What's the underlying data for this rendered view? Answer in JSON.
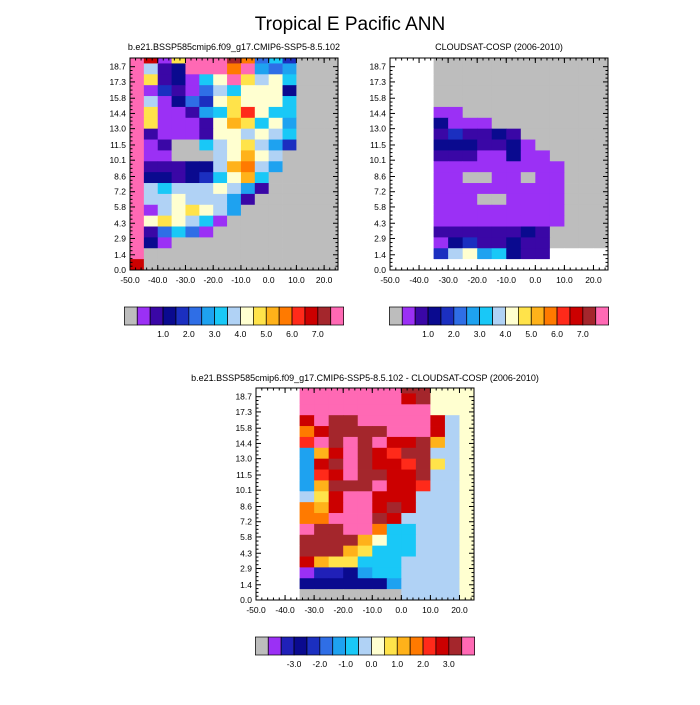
{
  "page_title": "Tropical E Pacific ANN",
  "colors": {
    "missing": "#bdbdbd",
    "default_scale": [
      "#bdbdbd",
      "#9b30f5",
      "#3a07a6",
      "#0a0a8f",
      "#1b2fc0",
      "#2f6ee6",
      "#1ea2f0",
      "#19c8f7",
      "#b0d2f5",
      "#ffffd0",
      "#ffe34a",
      "#ffb21a",
      "#ff7a00",
      "#ff2a1a",
      "#cc0000",
      "#a4262c",
      "#ff69b4"
    ],
    "diff_scale": [
      "#bdbdbd",
      "#9b30f5",
      "#2020b8",
      "#0a0a8f",
      "#1b2fc0",
      "#2f6ee6",
      "#1ea2f0",
      "#19c8f7",
      "#b0d2f5",
      "#ffffd0",
      "#ffe34a",
      "#ffb21a",
      "#ff7a00",
      "#ff2a1a",
      "#cc0000",
      "#a4262c",
      "#ff69b4"
    ]
  },
  "chart_data": [
    {
      "id": "model",
      "type": "heatmap",
      "title": "b.e21.BSSP585cmip6.f09_g17.CMIP6-SSP5-8.5.102",
      "xlim": [
        -50,
        25
      ],
      "ylim": [
        0,
        19.5
      ],
      "x_ticks": [
        -50,
        -40,
        -30,
        -20,
        -10,
        0,
        10,
        20
      ],
      "x_tick_labels": [
        "-50.0",
        "-40.0",
        "-30.0",
        "-20.0",
        "-10.0",
        "0.0",
        "10.0",
        "20.0"
      ],
      "y_ticks": [
        0.0,
        1.4,
        2.9,
        4.3,
        5.8,
        7.2,
        8.6,
        10.1,
        11.5,
        13.0,
        14.4,
        15.8,
        17.3,
        18.7
      ],
      "y_tick_labels": [
        "0.0",
        "1.4",
        "2.9",
        "4.3",
        "5.8",
        "7.2",
        "8.6",
        "10.1",
        "11.5",
        "13.0",
        "14.4",
        "15.8",
        "17.3",
        "18.7"
      ],
      "x_cells": [
        -50,
        -45,
        -40,
        -35,
        -30,
        -25,
        -20,
        -15,
        -10,
        -5,
        0,
        5,
        10,
        15,
        20
      ],
      "y_cells": [
        0,
        1,
        2,
        3,
        4,
        5,
        6,
        7,
        8,
        9,
        10,
        11,
        12,
        13,
        14,
        15,
        16,
        17,
        18,
        19
      ],
      "cell_width": 5,
      "cell_height": 1,
      "values_top_to_bottom": [
        [
          16,
          14,
          1,
          10,
          16,
          16,
          16,
          15,
          12,
          5,
          7,
          4,
          0,
          0,
          0
        ],
        [
          16,
          8,
          2,
          3,
          16,
          16,
          16,
          12,
          16,
          6,
          5,
          6,
          0,
          0,
          0
        ],
        [
          16,
          10,
          2,
          3,
          1,
          7,
          9,
          16,
          10,
          8,
          9,
          7,
          0,
          0,
          0
        ],
        [
          16,
          1,
          4,
          2,
          1,
          5,
          8,
          7,
          9,
          9,
          9,
          3,
          0,
          0,
          0
        ],
        [
          16,
          8,
          1,
          3,
          5,
          4,
          9,
          10,
          9,
          9,
          9,
          7,
          0,
          0,
          0
        ],
        [
          16,
          10,
          1,
          1,
          2,
          6,
          7,
          10,
          13,
          9,
          7,
          7,
          0,
          0,
          0
        ],
        [
          16,
          10,
          1,
          1,
          1,
          2,
          9,
          11,
          10,
          7,
          9,
          6,
          0,
          0,
          0
        ],
        [
          16,
          2,
          1,
          1,
          1,
          2,
          9,
          9,
          8,
          9,
          8,
          7,
          0,
          0,
          0
        ],
        [
          16,
          1,
          2,
          0,
          0,
          7,
          8,
          9,
          10,
          8,
          6,
          4,
          0,
          0,
          0
        ],
        [
          16,
          1,
          1,
          0,
          0,
          0,
          8,
          9,
          11,
          9,
          8,
          0,
          0,
          0,
          0
        ],
        [
          16,
          2,
          2,
          2,
          3,
          3,
          8,
          11,
          12,
          8,
          6,
          0,
          0,
          0,
          0
        ],
        [
          16,
          3,
          3,
          2,
          3,
          4,
          7,
          9,
          11,
          7,
          0,
          0,
          0,
          0,
          0
        ],
        [
          16,
          8,
          7,
          8,
          8,
          8,
          9,
          8,
          6,
          2,
          0,
          0,
          0,
          0,
          0
        ],
        [
          16,
          8,
          8,
          9,
          8,
          8,
          8,
          6,
          2,
          0,
          0,
          0,
          0,
          0,
          0
        ],
        [
          16,
          1,
          8,
          9,
          10,
          9,
          8,
          6,
          0,
          0,
          0,
          0,
          0,
          0,
          0
        ],
        [
          16,
          9,
          10,
          9,
          8,
          7,
          1,
          0,
          0,
          0,
          0,
          0,
          0,
          0,
          0
        ],
        [
          16,
          2,
          5,
          7,
          5,
          1,
          0,
          0,
          0,
          0,
          0,
          0,
          0,
          0,
          0
        ],
        [
          16,
          3,
          1,
          0,
          0,
          0,
          0,
          0,
          0,
          0,
          0,
          0,
          0,
          0,
          0
        ],
        [
          16,
          0,
          0,
          0,
          0,
          0,
          0,
          0,
          0,
          0,
          0,
          0,
          0,
          0,
          0
        ],
        [
          14,
          0,
          0,
          0,
          0,
          0,
          0,
          0,
          0,
          0,
          0,
          0,
          0,
          0,
          0
        ]
      ],
      "colorbar": {
        "scale": "default",
        "n_boxes": 16,
        "labels": [
          "1.0",
          "2.0",
          "3.0",
          "4.0",
          "5.0",
          "6.0",
          "7.0"
        ],
        "label_boundaries": [
          2,
          4,
          6,
          8,
          10,
          12,
          14
        ]
      },
      "grid": false
    },
    {
      "id": "obs",
      "type": "heatmap",
      "title": "CLOUDSAT-COSP (2006-2010)",
      "xlim": [
        -50,
        25
      ],
      "ylim": [
        0,
        19.5
      ],
      "x_ticks": [
        -50,
        -40,
        -30,
        -20,
        -10,
        0,
        10,
        20
      ],
      "x_tick_labels": [
        "-50.0",
        "-40.0",
        "-30.0",
        "-20.0",
        "-10.0",
        "0.0",
        "10.0",
        "20.0"
      ],
      "y_ticks": [
        0.0,
        1.4,
        2.9,
        4.3,
        5.8,
        7.2,
        8.6,
        10.1,
        11.5,
        13.0,
        14.4,
        15.8,
        17.3,
        18.7
      ],
      "y_tick_labels": [
        "0.0",
        "1.4",
        "2.9",
        "4.3",
        "5.8",
        "7.2",
        "8.6",
        "10.1",
        "11.5",
        "13.0",
        "14.4",
        "15.8",
        "17.3",
        "18.7"
      ],
      "x_cells": [
        -50,
        -45,
        -40,
        -35,
        -30,
        -25,
        -20,
        -15,
        -10,
        -5,
        0,
        5,
        10,
        15,
        20
      ],
      "y_cells": [
        0,
        1,
        2,
        3,
        4,
        5,
        6,
        7,
        8,
        9,
        10,
        11,
        12,
        13,
        14,
        15,
        16,
        17,
        18,
        19
      ],
      "cell_width": 5,
      "cell_height": 1,
      "values_top_to_bottom": [
        [
          -1,
          -1,
          -1,
          0,
          0,
          0,
          0,
          0,
          0,
          0,
          0,
          0,
          0,
          0,
          0
        ],
        [
          -1,
          -1,
          -1,
          0,
          0,
          0,
          0,
          0,
          0,
          0,
          0,
          0,
          0,
          0,
          0
        ],
        [
          -1,
          -1,
          -1,
          0,
          0,
          0,
          0,
          0,
          0,
          0,
          0,
          0,
          0,
          0,
          0
        ],
        [
          -1,
          -1,
          -1,
          0,
          0,
          0,
          0,
          0,
          0,
          0,
          0,
          0,
          0,
          0,
          0
        ],
        [
          -1,
          -1,
          -1,
          0,
          0,
          0,
          0,
          0,
          0,
          0,
          0,
          0,
          0,
          0,
          0
        ],
        [
          -1,
          -1,
          -1,
          1,
          1,
          0,
          0,
          0,
          0,
          0,
          0,
          0,
          0,
          0,
          0
        ],
        [
          -1,
          -1,
          -1,
          3,
          1,
          1,
          1,
          0,
          0,
          0,
          0,
          0,
          0,
          0,
          0
        ],
        [
          -1,
          -1,
          -1,
          2,
          4,
          2,
          2,
          3,
          2,
          0,
          0,
          0,
          0,
          0,
          0
        ],
        [
          -1,
          -1,
          -1,
          3,
          3,
          3,
          2,
          2,
          3,
          1,
          0,
          0,
          0,
          0,
          0
        ],
        [
          -1,
          -1,
          -1,
          2,
          2,
          2,
          1,
          1,
          3,
          1,
          1,
          0,
          0,
          0,
          0
        ],
        [
          -1,
          -1,
          -1,
          1,
          1,
          1,
          1,
          1,
          1,
          1,
          1,
          1,
          0,
          0,
          0
        ],
        [
          -1,
          -1,
          -1,
          1,
          1,
          0,
          0,
          1,
          1,
          0,
          1,
          1,
          0,
          0,
          0
        ],
        [
          -1,
          -1,
          -1,
          1,
          1,
          1,
          1,
          1,
          1,
          1,
          1,
          1,
          0,
          0,
          0
        ],
        [
          -1,
          -1,
          -1,
          1,
          1,
          1,
          0,
          0,
          1,
          1,
          1,
          1,
          0,
          0,
          0
        ],
        [
          -1,
          -1,
          -1,
          1,
          1,
          1,
          1,
          1,
          1,
          1,
          1,
          1,
          0,
          0,
          0
        ],
        [
          -1,
          -1,
          -1,
          1,
          1,
          1,
          1,
          1,
          1,
          1,
          1,
          1,
          0,
          0,
          0
        ],
        [
          -1,
          -1,
          -1,
          2,
          2,
          2,
          2,
          2,
          2,
          3,
          2,
          0,
          0,
          0,
          0
        ],
        [
          -1,
          -1,
          -1,
          1,
          3,
          4,
          2,
          2,
          3,
          2,
          2,
          0,
          0,
          0,
          0
        ],
        [
          -1,
          -1,
          -1,
          4,
          8,
          9,
          6,
          7,
          3,
          2,
          2,
          -1,
          -1,
          -1,
          -1
        ],
        [
          -1,
          -1,
          -1,
          -1,
          -1,
          -1,
          -1,
          -1,
          -1,
          -1,
          -1,
          -1,
          -1,
          -1,
          -1
        ]
      ],
      "colorbar": {
        "scale": "default",
        "n_boxes": 16,
        "labels": [
          "1.0",
          "2.0",
          "3.0",
          "4.0",
          "5.0",
          "6.0",
          "7.0"
        ],
        "label_boundaries": [
          2,
          4,
          6,
          8,
          10,
          12,
          14
        ]
      },
      "grid": false
    },
    {
      "id": "diff",
      "type": "heatmap",
      "title": "b.e21.BSSP585cmip6.f09_g17.CMIP6-SSP5-8.5.102 - CLOUDSAT-COSP (2006-2010)",
      "xlim": [
        -50,
        25
      ],
      "ylim": [
        0,
        19.5
      ],
      "x_ticks": [
        -50,
        -40,
        -30,
        -20,
        -10,
        0,
        10,
        20
      ],
      "x_tick_labels": [
        "-50.0",
        "-40.0",
        "-30.0",
        "-20.0",
        "-10.0",
        "0.0",
        "10.0",
        "20.0"
      ],
      "y_ticks": [
        0.0,
        1.4,
        2.9,
        4.3,
        5.8,
        7.2,
        8.6,
        10.1,
        11.5,
        13.0,
        14.4,
        15.8,
        17.3,
        18.7
      ],
      "y_tick_labels": [
        "0.0",
        "1.4",
        "2.9",
        "4.3",
        "5.8",
        "7.2",
        "8.6",
        "10.1",
        "11.5",
        "13.0",
        "14.4",
        "15.8",
        "17.3",
        "18.7"
      ],
      "x_cells": [
        -50,
        -45,
        -40,
        -35,
        -30,
        -25,
        -20,
        -15,
        -10,
        -5,
        0,
        5,
        10,
        15,
        20
      ],
      "y_cells": [
        0,
        1,
        2,
        3,
        4,
        5,
        6,
        7,
        8,
        9,
        10,
        11,
        12,
        13,
        14,
        15,
        16,
        17,
        18,
        19
      ],
      "cell_width": 5,
      "cell_height": 1,
      "values_top_to_bottom": [
        [
          -1,
          -1,
          -1,
          16,
          16,
          16,
          16,
          16,
          16,
          16,
          15,
          15,
          9,
          9,
          9
        ],
        [
          -1,
          -1,
          -1,
          16,
          16,
          16,
          16,
          16,
          16,
          16,
          14,
          15,
          9,
          9,
          9
        ],
        [
          -1,
          -1,
          -1,
          16,
          16,
          16,
          16,
          16,
          16,
          16,
          16,
          16,
          9,
          9,
          9
        ],
        [
          -1,
          -1,
          -1,
          14,
          16,
          15,
          15,
          16,
          16,
          16,
          16,
          16,
          14,
          8,
          9
        ],
        [
          -1,
          -1,
          -1,
          12,
          14,
          15,
          15,
          15,
          15,
          16,
          16,
          16,
          14,
          8,
          9
        ],
        [
          -1,
          -1,
          -1,
          13,
          16,
          15,
          16,
          15,
          16,
          14,
          14,
          15,
          11,
          8,
          9
        ],
        [
          -1,
          -1,
          -1,
          6,
          11,
          14,
          16,
          15,
          14,
          13,
          15,
          15,
          8,
          8,
          9
        ],
        [
          -1,
          -1,
          -1,
          6,
          14,
          15,
          16,
          15,
          14,
          14,
          13,
          15,
          10,
          8,
          9
        ],
        [
          -1,
          -1,
          -1,
          6,
          13,
          14,
          16,
          15,
          15,
          14,
          14,
          15,
          8,
          8,
          9
        ],
        [
          -1,
          -1,
          -1,
          6,
          11,
          15,
          15,
          15,
          16,
          14,
          14,
          13,
          8,
          8,
          9
        ],
        [
          -1,
          -1,
          -1,
          8,
          10,
          14,
          16,
          16,
          14,
          14,
          14,
          8,
          8,
          8,
          9
        ],
        [
          -1,
          -1,
          -1,
          12,
          11,
          14,
          16,
          16,
          14,
          15,
          14,
          8,
          8,
          8,
          9
        ],
        [
          -1,
          -1,
          -1,
          12,
          12,
          16,
          16,
          16,
          15,
          14,
          8,
          8,
          8,
          8,
          9
        ],
        [
          -1,
          -1,
          -1,
          16,
          15,
          15,
          16,
          16,
          12,
          7,
          7,
          8,
          8,
          8,
          9
        ],
        [
          -1,
          -1,
          -1,
          15,
          15,
          15,
          15,
          11,
          9,
          7,
          7,
          8,
          8,
          8,
          9
        ],
        [
          -1,
          -1,
          -1,
          15,
          15,
          15,
          11,
          10,
          7,
          7,
          7,
          8,
          8,
          8,
          9
        ],
        [
          -1,
          -1,
          -1,
          14,
          11,
          10,
          10,
          7,
          7,
          7,
          8,
          8,
          8,
          8,
          9
        ],
        [
          -1,
          -1,
          -1,
          1,
          2,
          2,
          3,
          6,
          7,
          7,
          8,
          8,
          8,
          8,
          9
        ],
        [
          -1,
          -1,
          -1,
          3,
          3,
          3,
          3,
          3,
          3,
          6,
          8,
          8,
          8,
          8,
          9
        ],
        [
          -1,
          -1,
          -1,
          0,
          0,
          0,
          0,
          0,
          0,
          0,
          8,
          8,
          8,
          8,
          9
        ]
      ],
      "colorbar": {
        "scale": "diff",
        "n_boxes": 16,
        "labels": [
          "-3.0",
          "-2.0",
          "-1.0",
          "0.0",
          "1.0",
          "2.0",
          "3.0"
        ],
        "label_boundaries": [
          2,
          4,
          6,
          8,
          10,
          12,
          14
        ]
      },
      "grid": false
    }
  ]
}
